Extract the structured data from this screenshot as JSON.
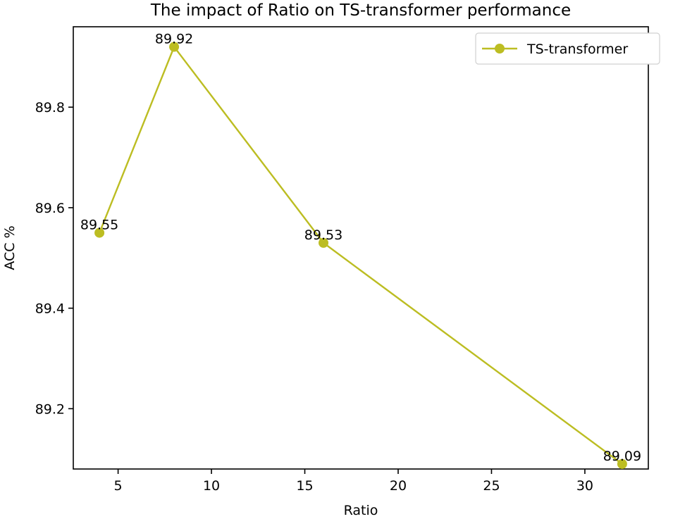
{
  "chart_data": {
    "type": "line",
    "title": "The impact of Ratio on TS-transformer performance",
    "xlabel": "Ratio",
    "ylabel": "ACC %",
    "xlim": [
      2.6,
      33.4
    ],
    "ylim": [
      89.08,
      89.96
    ],
    "xticks": [
      5,
      10,
      15,
      20,
      25,
      30
    ],
    "yticks": [
      89.2,
      89.4,
      89.6,
      89.8
    ],
    "xtick_labels": [
      "5",
      "10",
      "15",
      "20",
      "25",
      "30"
    ],
    "ytick_labels": [
      "89.2",
      "89.4",
      "89.6",
      "89.8"
    ],
    "grid": false,
    "legend_position": "top-right",
    "series": [
      {
        "name": "TS-transformer",
        "color": "#bcbd22",
        "marker": "circle",
        "x": [
          4,
          8,
          16,
          32
        ],
        "y": [
          89.55,
          89.92,
          89.53,
          89.09
        ],
        "labels": [
          "89.55",
          "89.92",
          "89.53",
          "89.09"
        ]
      }
    ]
  }
}
